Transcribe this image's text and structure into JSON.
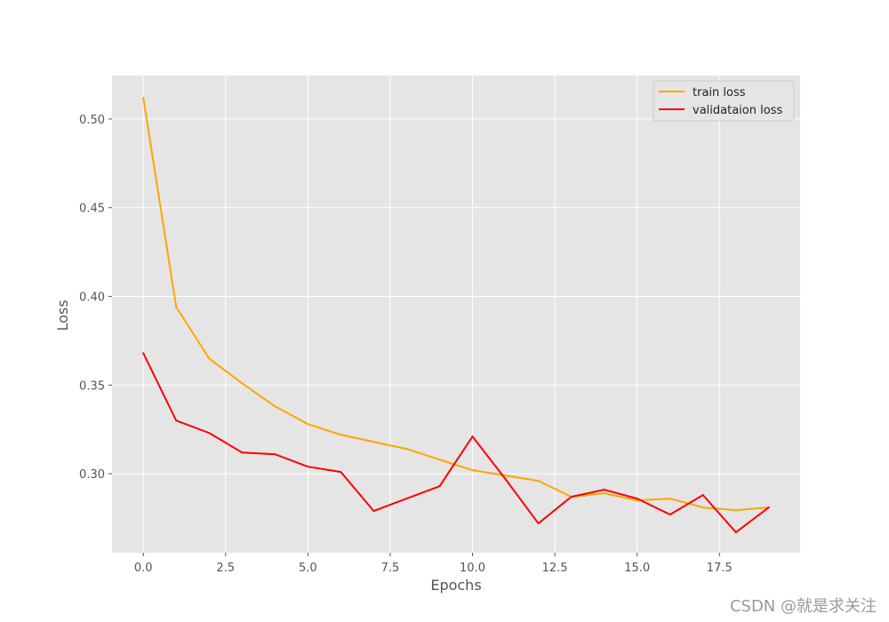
{
  "chart_data": {
    "type": "line",
    "title": "",
    "xlabel": "Epochs",
    "ylabel": "Loss",
    "xlim": [
      -0.95,
      19.95
    ],
    "ylim": [
      0.2555,
      0.5245
    ],
    "x_ticks": [
      0.0,
      2.5,
      5.0,
      7.5,
      10.0,
      12.5,
      15.0,
      17.5
    ],
    "x_tick_labels": [
      "0.0",
      "2.5",
      "5.0",
      "7.5",
      "10.0",
      "12.5",
      "15.0",
      "17.5"
    ],
    "y_ticks": [
      0.3,
      0.35,
      0.4,
      0.45,
      0.5
    ],
    "y_tick_labels": [
      "0.30",
      "0.35",
      "0.40",
      "0.45",
      "0.50"
    ],
    "grid": true,
    "legend_position": "top-right",
    "x": [
      0,
      1,
      2,
      3,
      4,
      5,
      6,
      7,
      8,
      9,
      10,
      11,
      12,
      13,
      14,
      15,
      16,
      17,
      18,
      19
    ],
    "series": [
      {
        "name": "train loss",
        "color": "#ffa500",
        "values": [
          0.512,
          0.394,
          0.365,
          0.351,
          0.338,
          0.328,
          0.322,
          0.318,
          0.314,
          0.308,
          0.302,
          0.299,
          0.296,
          0.287,
          0.289,
          0.285,
          0.286,
          0.281,
          0.2795,
          0.281
        ]
      },
      {
        "name": "validataion loss",
        "color": "#ff0000",
        "values": [
          0.368,
          0.33,
          0.323,
          0.312,
          0.311,
          0.304,
          0.301,
          0.279,
          0.286,
          0.293,
          0.321,
          0.297,
          0.272,
          0.287,
          0.291,
          0.286,
          0.277,
          0.288,
          0.267,
          0.281
        ]
      }
    ]
  },
  "watermark": "CSDN @就是求关注"
}
